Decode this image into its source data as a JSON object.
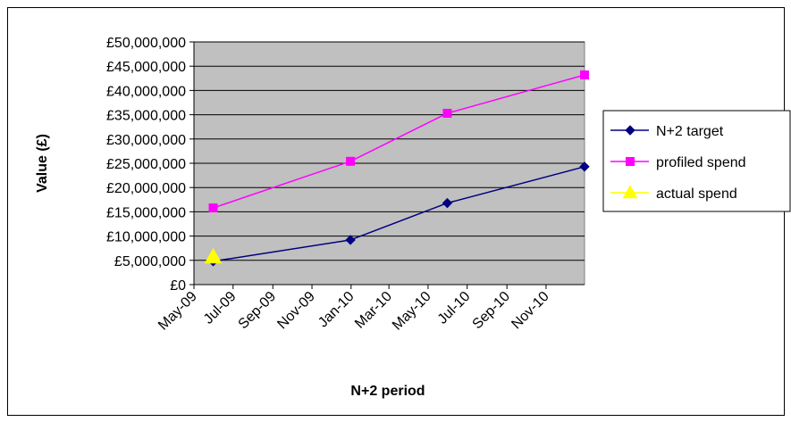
{
  "chart_data": {
    "type": "line",
    "xlabel": "N+2 period",
    "ylabel": "Value (£)",
    "x_ticks": [
      "May-09",
      "Jul-09",
      "Sep-09",
      "Nov-09",
      "Jan-10",
      "Mar-10",
      "May-10",
      "Jul-10",
      "Sep-10",
      "Nov-10"
    ],
    "x_range": [
      "2009-05-01",
      "2010-12-31"
    ],
    "y_ticks": [
      "£0",
      "£5,000,000",
      "£10,000,000",
      "£15,000,000",
      "£20,000,000",
      "£25,000,000",
      "£30,000,000",
      "£35,000,000",
      "£40,000,000",
      "£45,000,000",
      "£50,000,000"
    ],
    "ylim": [
      0,
      50000000
    ],
    "grid": "horizontal",
    "legend_position": "right",
    "plot_background": "#c0c0c0",
    "series": [
      {
        "name": "N+2 target",
        "color": "#000080",
        "marker": "diamond",
        "points": [
          {
            "x": "2009-05-31",
            "y": 4800000
          },
          {
            "x": "2009-12-31",
            "y": 9200000
          },
          {
            "x": "2010-05-31",
            "y": 16800000
          },
          {
            "x": "2010-12-31",
            "y": 24300000
          }
        ]
      },
      {
        "name": "profiled spend",
        "color": "#ff00ff",
        "marker": "square",
        "points": [
          {
            "x": "2009-05-31",
            "y": 15800000
          },
          {
            "x": "2009-12-31",
            "y": 25400000
          },
          {
            "x": "2010-05-31",
            "y": 35300000
          },
          {
            "x": "2010-12-31",
            "y": 43200000
          }
        ]
      },
      {
        "name": "actual spend",
        "color": "#ffff00",
        "marker": "triangle",
        "points": [
          {
            "x": "2009-05-31",
            "y": 5700000
          }
        ]
      }
    ]
  }
}
